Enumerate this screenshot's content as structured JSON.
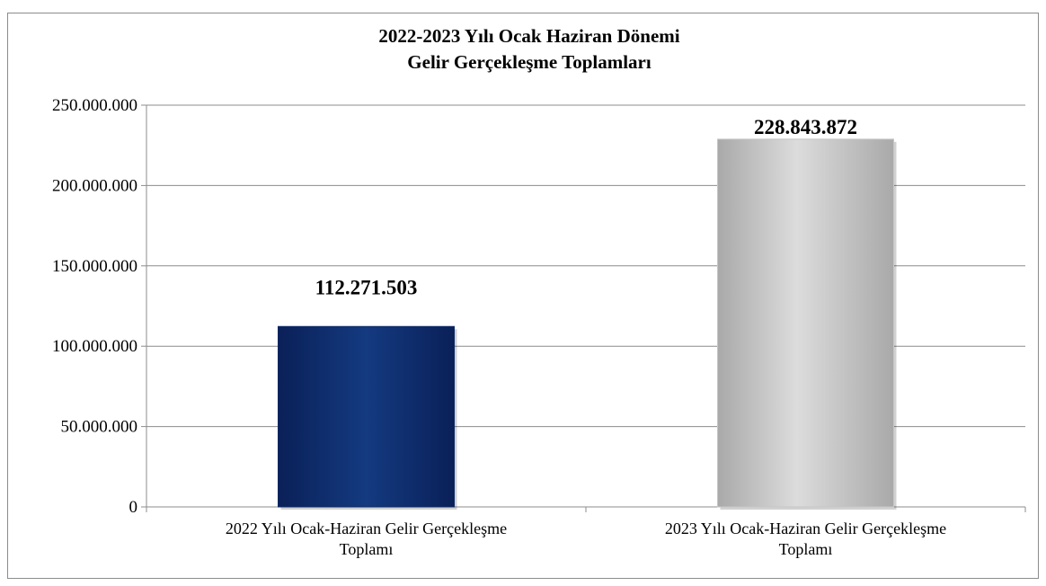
{
  "chart_data": {
    "type": "bar",
    "title": "2022-2023 Yılı Ocak Haziran Dönemi",
    "subtitle": "Gelir Gerçekleşme Toplamları",
    "categories": [
      [
        "2022 Yılı Ocak-Haziran Gelir Gerçekleşme",
        "Toplamı"
      ],
      [
        "2023 Yılı Ocak-Haziran Gelir Gerçekleşme",
        "Toplamı"
      ]
    ],
    "values": [
      112271503,
      228843872
    ],
    "data_labels": [
      "112.271.503",
      "228.843.872"
    ],
    "bar_colors": [
      "#0e2a66",
      "#c6c6c6"
    ],
    "ylim": [
      0,
      250000000
    ],
    "yticks": [
      0,
      50000000,
      100000000,
      150000000,
      200000000,
      250000000
    ],
    "ytick_labels": [
      "0",
      "50.000.000",
      "100.000.000",
      "150.000.000",
      "200.000.000",
      "250.000.000"
    ],
    "grid": true,
    "xlabel": "",
    "ylabel": ""
  }
}
